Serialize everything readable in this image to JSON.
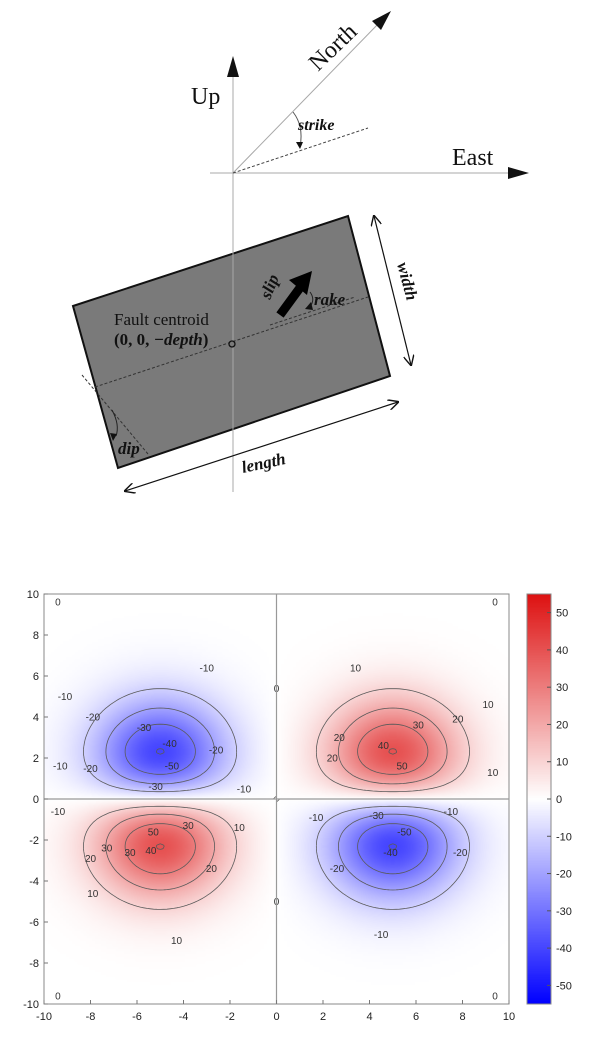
{
  "diagram": {
    "axes": {
      "up": "Up",
      "north": "North",
      "east": "East"
    },
    "angles": {
      "strike": "strike",
      "rake": "rake",
      "dip": "dip"
    },
    "dimensions": {
      "width": "width",
      "length": "length",
      "slip": "slip"
    },
    "centroid": {
      "title": "Fault centroid",
      "coords_prefix": "(0, 0, ",
      "coords_depth": "−depth",
      "coords_suffix": ")"
    },
    "colors": {
      "fault_plane": "#7a7a7a",
      "outline": "#111111",
      "axis": "#9a9a9a"
    }
  },
  "chart_data": {
    "type": "heatmap",
    "xlim": [
      -10,
      10
    ],
    "ylim": [
      -10,
      10
    ],
    "x_ticks": [
      -10,
      -8,
      -6,
      -4,
      -2,
      0,
      2,
      4,
      6,
      8,
      10
    ],
    "y_ticks": [
      -10,
      -8,
      -6,
      -4,
      -2,
      0,
      2,
      4,
      6,
      8,
      10
    ],
    "colorbar": {
      "min": -55,
      "max": 55,
      "ticks": [
        -50,
        -40,
        -30,
        -20,
        -10,
        0,
        10,
        20,
        30,
        40,
        50
      ],
      "negative_color": "#0000ff",
      "positive_color": "#dd1111"
    },
    "lobes": [
      {
        "x": -5,
        "y": 1.5,
        "peak": -55
      },
      {
        "x": 5,
        "y": 1.5,
        "peak": 55
      },
      {
        "x": -5,
        "y": -1.5,
        "peak": 55
      },
      {
        "x": 5,
        "y": -1.5,
        "peak": -55
      }
    ],
    "contour_levels": [
      -50,
      -40,
      -30,
      -20,
      -10,
      0,
      10,
      20,
      30,
      40,
      50
    ],
    "contour_labels": [
      {
        "x": -9.4,
        "y": 9.6,
        "text": "0"
      },
      {
        "x": 9.4,
        "y": 9.6,
        "text": "0"
      },
      {
        "x": -9.4,
        "y": -9.6,
        "text": "0"
      },
      {
        "x": 9.4,
        "y": -9.6,
        "text": "0"
      },
      {
        "x": 0,
        "y": 5.4,
        "text": "0"
      },
      {
        "x": 0,
        "y": -5.0,
        "text": "0"
      },
      {
        "x": -3.0,
        "y": 6.4,
        "text": "-10"
      },
      {
        "x": -9.1,
        "y": 5.0,
        "text": "-10"
      },
      {
        "x": -9.3,
        "y": 1.6,
        "text": "-10"
      },
      {
        "x": -1.4,
        "y": 0.5,
        "text": "-10"
      },
      {
        "x": -7.9,
        "y": 4.0,
        "text": "-20"
      },
      {
        "x": -8.0,
        "y": 1.5,
        "text": "-20"
      },
      {
        "x": -2.6,
        "y": 2.4,
        "text": "-20"
      },
      {
        "x": -5.7,
        "y": 3.5,
        "text": "-30"
      },
      {
        "x": -5.2,
        "y": 0.6,
        "text": "-30"
      },
      {
        "x": -4.6,
        "y": 2.7,
        "text": "-40"
      },
      {
        "x": -4.5,
        "y": 1.6,
        "text": "-50"
      },
      {
        "x": 3.4,
        "y": 6.4,
        "text": "10"
      },
      {
        "x": 9.1,
        "y": 4.6,
        "text": "10"
      },
      {
        "x": 9.3,
        "y": 1.3,
        "text": "10"
      },
      {
        "x": 2.7,
        "y": 3.0,
        "text": "20"
      },
      {
        "x": 7.8,
        "y": 3.9,
        "text": "20"
      },
      {
        "x": 2.4,
        "y": 2.0,
        "text": "20"
      },
      {
        "x": 6.1,
        "y": 3.6,
        "text": "30"
      },
      {
        "x": 4.6,
        "y": 2.6,
        "text": "40"
      },
      {
        "x": 5.4,
        "y": 1.6,
        "text": "50"
      },
      {
        "x": -9.4,
        "y": -0.6,
        "text": "-10"
      },
      {
        "x": -1.6,
        "y": -1.4,
        "text": "10"
      },
      {
        "x": -8.0,
        "y": -2.9,
        "text": "20"
      },
      {
        "x": -2.8,
        "y": -3.4,
        "text": "20"
      },
      {
        "x": -7.9,
        "y": -4.6,
        "text": "10"
      },
      {
        "x": -7.3,
        "y": -2.4,
        "text": "30"
      },
      {
        "x": -3.8,
        "y": -1.3,
        "text": "30"
      },
      {
        "x": -6.3,
        "y": -2.6,
        "text": "30"
      },
      {
        "x": -5.4,
        "y": -2.5,
        "text": "40"
      },
      {
        "x": -5.3,
        "y": -1.6,
        "text": "50"
      },
      {
        "x": -4.3,
        "y": -6.9,
        "text": "10"
      },
      {
        "x": 1.7,
        "y": -0.9,
        "text": "-10"
      },
      {
        "x": 7.5,
        "y": -0.6,
        "text": "-10"
      },
      {
        "x": 2.6,
        "y": -3.4,
        "text": "-20"
      },
      {
        "x": 7.9,
        "y": -2.6,
        "text": "-20"
      },
      {
        "x": 4.3,
        "y": -0.8,
        "text": "-30"
      },
      {
        "x": 4.9,
        "y": -2.6,
        "text": "-40"
      },
      {
        "x": 5.5,
        "y": -1.6,
        "text": "-50"
      },
      {
        "x": 4.5,
        "y": -6.6,
        "text": "-10"
      }
    ]
  }
}
